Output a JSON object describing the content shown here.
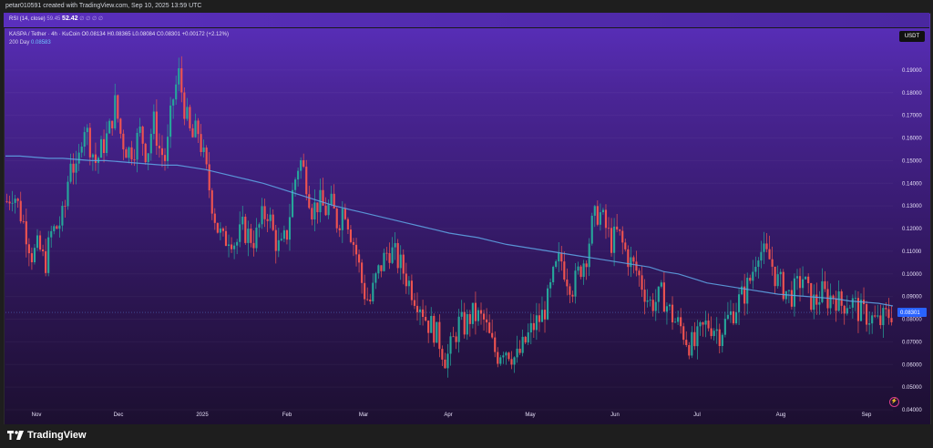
{
  "topbar": {
    "caption": "petar010591 created with TradingView.com, Sep 10, 2025 13:59 UTC"
  },
  "rsi": {
    "label": "RSI (14, close)",
    "value1": "59.45",
    "value2": "52.42",
    "icons": "∅ ∅ ∅ ∅"
  },
  "legend": {
    "symbol_line": "KASPA / Tether · 4h · KuCoin  O0.08134  H0.08365  L0.08084  C0.08301  +0.00172 (+2.12%)",
    "ma_label": "200 Day",
    "ma_value": "0.08583"
  },
  "currency_badge": "USDT",
  "branding": {
    "name": "TradingView"
  },
  "colors": {
    "up": "#26a69a",
    "down": "#ef5350",
    "ma": "#5fa8e8",
    "price_tag": "#2962ff"
  },
  "chart_data": {
    "type": "candlestick",
    "title": "KASPA / Tether · 4h · KuCoin",
    "ylim": [
      0.04,
      0.2
    ],
    "y_ticks": [
      "0.19000",
      "0.18000",
      "0.17000",
      "0.16000",
      "0.15000",
      "0.14000",
      "0.13000",
      "0.12000",
      "0.11000",
      "0.10000",
      "0.09000",
      "0.08000",
      "0.07000",
      "0.06000",
      "0.05000",
      "0.04000"
    ],
    "x_ticks": [
      "Nov",
      "Dec",
      "2025",
      "Feb",
      "Mar",
      "Apr",
      "May",
      "Jun",
      "Jul",
      "Aug",
      "Sep"
    ],
    "last_price": "0.08301",
    "ma_last": "0.08583",
    "close_path": [
      0.132,
      0.137,
      0.128,
      0.119,
      0.108,
      0.112,
      0.104,
      0.118,
      0.121,
      0.126,
      0.152,
      0.142,
      0.168,
      0.158,
      0.149,
      0.156,
      0.162,
      0.175,
      0.16,
      0.154,
      0.156,
      0.163,
      0.152,
      0.168,
      0.155,
      0.15,
      0.176,
      0.188,
      0.172,
      0.159,
      0.164,
      0.15,
      0.135,
      0.121,
      0.114,
      0.118,
      0.113,
      0.12,
      0.117,
      0.115,
      0.124,
      0.128,
      0.116,
      0.11,
      0.118,
      0.138,
      0.151,
      0.142,
      0.128,
      0.132,
      0.128,
      0.13,
      0.122,
      0.131,
      0.119,
      0.108,
      0.093,
      0.087,
      0.098,
      0.105,
      0.111,
      0.108,
      0.103,
      0.097,
      0.091,
      0.087,
      0.079,
      0.076,
      0.07,
      0.062,
      0.069,
      0.078,
      0.077,
      0.082,
      0.081,
      0.079,
      0.07,
      0.064,
      0.068,
      0.066,
      0.062,
      0.067,
      0.073,
      0.078,
      0.081,
      0.088,
      0.1,
      0.107,
      0.099,
      0.094,
      0.102,
      0.108,
      0.122,
      0.128,
      0.121,
      0.114,
      0.118,
      0.111,
      0.105,
      0.101,
      0.094,
      0.087,
      0.088,
      0.091,
      0.084,
      0.079,
      0.076,
      0.07,
      0.068,
      0.074,
      0.078,
      0.077,
      0.074,
      0.079,
      0.083,
      0.088,
      0.092,
      0.099,
      0.112,
      0.108,
      0.106,
      0.097,
      0.094,
      0.09,
      0.093,
      0.099,
      0.09,
      0.087,
      0.092,
      0.089,
      0.091,
      0.086,
      0.088,
      0.087,
      0.083,
      0.082,
      0.08,
      0.078,
      0.081,
      0.083
    ],
    "ma_path": [
      0.152,
      0.152,
      0.1515,
      0.151,
      0.151,
      0.1505,
      0.15,
      0.15,
      0.1495,
      0.149,
      0.1485,
      0.148,
      0.148,
      0.147,
      0.146,
      0.1445,
      0.143,
      0.1415,
      0.14,
      0.138,
      0.136,
      0.134,
      0.132,
      0.13,
      0.1285,
      0.127,
      0.1255,
      0.124,
      0.1225,
      0.121,
      0.1195,
      0.118,
      0.117,
      0.116,
      0.1145,
      0.113,
      0.112,
      0.111,
      0.11,
      0.109,
      0.108,
      0.107,
      0.106,
      0.105,
      0.104,
      0.103,
      0.101,
      0.1,
      0.098,
      0.096,
      0.095,
      0.094,
      0.093,
      0.092,
      0.091,
      0.0905,
      0.09,
      0.0895,
      0.089,
      0.088,
      0.0875,
      0.087,
      0.08583
    ]
  }
}
